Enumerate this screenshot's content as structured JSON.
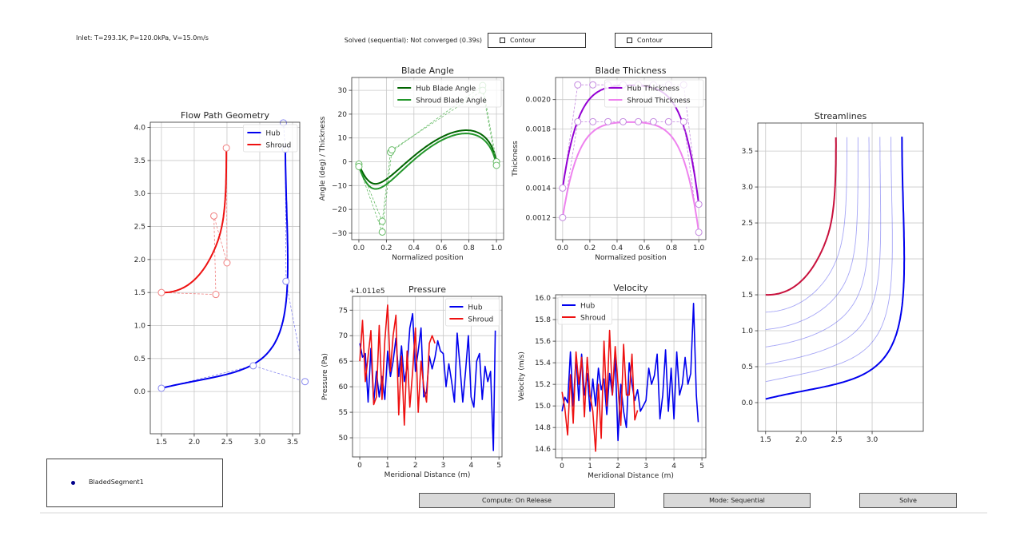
{
  "header": {
    "inlet_text": "Inlet: T=293.1K, P=120.0kPa, V=15.0m/s",
    "status_text": "Solved (sequential): Not converged (0.39s)",
    "contour_toggle_1": "Contour",
    "contour_toggle_2": "Contour"
  },
  "segments": {
    "items": [
      {
        "label": "BladedSegment1",
        "color": "#00008b"
      }
    ]
  },
  "controls": {
    "compute_label": "Compute: On Release",
    "mode_label": "Mode: Sequential",
    "solve_label": "Solve"
  },
  "chart_data": [
    {
      "id": "flow-path",
      "type": "line",
      "title": "Flow Path Geometry",
      "xlabel": "",
      "ylabel": "",
      "xlim": [
        1.33,
        3.61
      ],
      "ylim": [
        -0.64,
        4.08
      ],
      "grid": true,
      "legend": "upper-right",
      "xticks": [
        "1.5",
        "2.0",
        "2.5",
        "3.0",
        "3.5"
      ],
      "yticks": [
        "0.0",
        "0.5",
        "1.0",
        "1.5",
        "2.0",
        "2.5",
        "3.0",
        "3.5",
        "4.0"
      ],
      "series": [
        {
          "name": "Hub",
          "color": "#0000ee",
          "marker_color": "#8888f0",
          "kind": "bezier",
          "show_control": true,
          "control_points": [
            [
              1.5,
              0.05
            ],
            [
              2.9,
              0.39
            ],
            [
              3.69,
              0.15
            ],
            [
              3.4,
              1.67
            ],
            [
              3.39,
              3.67
            ],
            [
              3.36,
              4.07
            ]
          ]
        },
        {
          "name": "Shroud",
          "color": "#ee1111",
          "marker_color": "#f08080",
          "kind": "bezier",
          "show_control": true,
          "control_points": [
            [
              1.5,
              1.5
            ],
            [
              2.33,
              1.47
            ],
            [
              2.3,
              2.66
            ],
            [
              2.5,
              1.95
            ],
            [
              2.49,
              3.69
            ]
          ]
        }
      ]
    },
    {
      "id": "blade-angle",
      "type": "line",
      "title": "Blade Angle",
      "xlabel": "Normalized position",
      "ylabel": "Angle (deg) / Thickness",
      "xlim": [
        -0.052,
        1.052
      ],
      "ylim": [
        -32.7,
        35.4
      ],
      "grid": true,
      "legend": "upper-right",
      "xticks": [
        "0.0",
        "0.2",
        "0.4",
        "0.6",
        "0.8",
        "1.0"
      ],
      "yticks": [
        "−30",
        "−20",
        "−10",
        "0",
        "10",
        "20",
        "30"
      ],
      "series": [
        {
          "name": "Hub Blade Angle",
          "color": "#006400",
          "marker_color": "#66bb66",
          "kind": "bezier",
          "show_control": true,
          "control_points": [
            [
              0,
              -1
            ],
            [
              0.17,
              -25
            ],
            [
              0.23,
              4
            ],
            [
              0.9,
              32
            ],
            [
              1.0,
              0
            ]
          ]
        },
        {
          "name": "Shroud Blade Angle",
          "color": "#22962a",
          "marker_color": "#66bb66",
          "kind": "bezier",
          "show_control": true,
          "control_points": [
            [
              0,
              -2
            ],
            [
              0.17,
              -29.5
            ],
            [
              0.24,
              5
            ],
            [
              0.9,
              30
            ],
            [
              1.0,
              -1.5
            ]
          ]
        }
      ]
    },
    {
      "id": "blade-thickness",
      "type": "line",
      "title": "Blade Thickness",
      "xlabel": "Normalized position",
      "ylabel": "Thickness",
      "xlim": [
        -0.052,
        1.052
      ],
      "ylim": [
        0.00105,
        0.00215
      ],
      "grid": true,
      "legend": "upper-right",
      "xticks": [
        "0.0",
        "0.2",
        "0.4",
        "0.6",
        "0.8",
        "1.0"
      ],
      "yticks": [
        "0.0012",
        "0.0014",
        "0.0016",
        "0.0018",
        "0.0020"
      ],
      "series": [
        {
          "name": "Hub Thickness",
          "color": "#9400d3",
          "marker_color": "#c48ae0",
          "kind": "bezier",
          "show_control": true,
          "control_points": [
            [
              0,
              0.0014
            ],
            [
              0.111,
              0.0021
            ],
            [
              0.222,
              0.0021
            ],
            [
              0.333,
              0.0021
            ],
            [
              0.444,
              0.0021
            ],
            [
              0.556,
              0.0021
            ],
            [
              0.667,
              0.0021
            ],
            [
              0.778,
              0.0021
            ],
            [
              0.889,
              0.0021
            ],
            [
              1.0,
              0.00129
            ]
          ]
        },
        {
          "name": "Shroud Thickness",
          "color": "#ee82ee",
          "marker_color": "#c48ae0",
          "kind": "bezier",
          "show_control": true,
          "control_points": [
            [
              0,
              0.0012
            ],
            [
              0.111,
              0.00185
            ],
            [
              0.222,
              0.00185
            ],
            [
              0.333,
              0.00185
            ],
            [
              0.444,
              0.00185
            ],
            [
              0.556,
              0.00185
            ],
            [
              0.667,
              0.00185
            ],
            [
              0.778,
              0.00185
            ],
            [
              0.889,
              0.00185
            ],
            [
              1.0,
              0.0011
            ]
          ]
        }
      ]
    },
    {
      "id": "pressure",
      "type": "line",
      "title": "Pressure",
      "xlabel": "Meridional Distance (m)",
      "ylabel": "Pressure (Pa)",
      "offset_text": "+1.011e5",
      "xlim": [
        -0.26,
        5.11
      ],
      "ylim": [
        46.25,
        77.7
      ],
      "grid": true,
      "legend": "upper-right",
      "xticks": [
        "0",
        "1",
        "2",
        "3",
        "4",
        "5"
      ],
      "yticks": [
        "50",
        "55",
        "60",
        "65",
        "70",
        "75"
      ],
      "series": [
        {
          "name": "Hub",
          "color": "#0000ee",
          "kind": "line",
          "x": [
            0,
            0.1,
            0.2,
            0.3,
            0.4,
            0.5,
            0.6,
            0.7,
            0.8,
            0.9,
            1.0,
            1.1,
            1.2,
            1.3,
            1.4,
            1.5,
            1.6,
            1.7,
            1.8,
            1.9,
            2.0,
            2.1,
            2.2,
            2.3,
            2.4,
            2.5,
            2.6,
            2.7,
            2.8,
            2.9,
            3.0,
            3.1,
            3.2,
            3.3,
            3.4,
            3.5,
            3.6,
            3.7,
            3.8,
            3.9,
            4.0,
            4.1,
            4.2,
            4.3,
            4.4,
            4.5,
            4.6,
            4.7,
            4.8,
            4.87
          ],
          "y": [
            68.5,
            65.8,
            66.5,
            57,
            67.5,
            56.8,
            63,
            58,
            62,
            57.5,
            67,
            62,
            65,
            69.5,
            62,
            68,
            61,
            64,
            71.5,
            74.3,
            63,
            67,
            71.5,
            58,
            59,
            66,
            63.5,
            65.7,
            69,
            67,
            66.5,
            60,
            64.5,
            61,
            57,
            70.5,
            64,
            57,
            63,
            70,
            58,
            56,
            65,
            66.5,
            57.5,
            64,
            61,
            63,
            47.5,
            71
          ]
        },
        {
          "name": "Shroud",
          "color": "#ee1111",
          "kind": "line",
          "x": [
            0,
            0.1,
            0.2,
            0.3,
            0.4,
            0.5,
            0.6,
            0.7,
            0.8,
            0.9,
            1.0,
            1.1,
            1.2,
            1.3,
            1.4,
            1.5,
            1.6,
            1.7,
            1.8,
            1.9,
            2.0,
            2.1,
            2.2,
            2.3,
            2.4,
            2.5,
            2.6,
            2.7
          ],
          "y": [
            65,
            73,
            61,
            66,
            71,
            56.5,
            58,
            72,
            57.5,
            69,
            76,
            63,
            70,
            74,
            54.5,
            66,
            52.5,
            67,
            56,
            63,
            71.5,
            55,
            65,
            60,
            57,
            68.5,
            70,
            68.5
          ]
        }
      ]
    },
    {
      "id": "velocity",
      "type": "line",
      "title": "Velocity",
      "xlabel": "Meridional Distance (m)",
      "ylabel": "Velocity (m/s)",
      "xlim": [
        -0.23,
        5.14
      ],
      "ylim": [
        14.52,
        16.03
      ],
      "grid": true,
      "legend": "upper-left",
      "xticks": [
        "0",
        "1",
        "2",
        "3",
        "4",
        "5"
      ],
      "yticks": [
        "14.6",
        "14.8",
        "15.0",
        "15.2",
        "15.4",
        "15.6",
        "15.8",
        "16.0"
      ],
      "series": [
        {
          "name": "Hub",
          "color": "#0000ee",
          "kind": "line",
          "x": [
            0,
            0.1,
            0.2,
            0.3,
            0.4,
            0.5,
            0.6,
            0.7,
            0.8,
            0.9,
            1.0,
            1.1,
            1.2,
            1.3,
            1.4,
            1.5,
            1.6,
            1.7,
            1.8,
            1.9,
            2.0,
            2.1,
            2.2,
            2.3,
            2.4,
            2.5,
            2.6,
            2.7,
            2.8,
            2.9,
            3.0,
            3.1,
            3.2,
            3.3,
            3.4,
            3.5,
            3.6,
            3.7,
            3.8,
            3.9,
            4.0,
            4.1,
            4.2,
            4.3,
            4.4,
            4.5,
            4.6,
            4.7,
            4.8,
            4.87
          ],
          "y": [
            14.95,
            15.08,
            15.03,
            15.5,
            15.0,
            15.45,
            15.05,
            15.48,
            15.1,
            15.3,
            14.95,
            15.25,
            15.0,
            15.35,
            15.15,
            15.25,
            14.92,
            15.3,
            15.1,
            15.45,
            14.68,
            15.2,
            14.95,
            14.8,
            15.4,
            15.2,
            15.05,
            15.15,
            14.95,
            15.0,
            15.05,
            15.35,
            15.2,
            15.28,
            15.48,
            14.88,
            15.1,
            15.52,
            14.95,
            15.35,
            14.88,
            15.5,
            15.1,
            15.2,
            15.45,
            15.2,
            15.3,
            15.95,
            15.1,
            14.85
          ]
        },
        {
          "name": "Shroud",
          "color": "#ee1111",
          "kind": "line",
          "x": [
            0,
            0.1,
            0.2,
            0.3,
            0.4,
            0.5,
            0.6,
            0.7,
            0.8,
            0.9,
            1.0,
            1.1,
            1.2,
            1.3,
            1.4,
            1.5,
            1.6,
            1.7,
            1.8,
            1.9,
            2.0,
            2.1,
            2.2,
            2.3,
            2.4,
            2.5,
            2.6,
            2.7
          ],
          "y": [
            15.13,
            14.98,
            14.73,
            15.29,
            14.84,
            15.5,
            15.2,
            15.45,
            14.9,
            15.45,
            15.1,
            14.95,
            14.58,
            15.2,
            14.7,
            15.6,
            15.0,
            15.7,
            15.1,
            15.55,
            15.2,
            14.82,
            15.57,
            15.1,
            15.1,
            15.48,
            14.87,
            14.96
          ]
        }
      ]
    },
    {
      "id": "streamlines",
      "type": "line",
      "title": "Streamlines",
      "xlabel": "",
      "ylabel": "",
      "xlim": [
        1.39,
        3.72
      ],
      "ylim": [
        -0.4,
        3.89
      ],
      "grid": true,
      "legend": "none",
      "xticks": [
        "1.5",
        "2.0",
        "2.5",
        "3.0"
      ],
      "yticks": [
        "0.0",
        "0.5",
        "1.0",
        "1.5",
        "2.0",
        "2.5",
        "3.0",
        "3.5"
      ],
      "interior_streamlines": 5,
      "interior_color": "#6a6af0",
      "series": [
        {
          "name": "",
          "color": "#0000ee",
          "kind": "bezier",
          "show_control": false,
          "control_points": [
            [
              1.5,
              0.05
            ],
            [
              2.9,
              0.39
            ],
            [
              3.72,
              0.15
            ],
            [
              3.42,
              1.67
            ],
            [
              3.42,
              3.7
            ]
          ]
        },
        {
          "name": "",
          "color": "#c8103c",
          "kind": "bezier",
          "show_control": false,
          "control_points": [
            [
              1.5,
              1.5
            ],
            [
              2.33,
              1.47
            ],
            [
              2.3,
              2.66
            ],
            [
              2.5,
              1.95
            ],
            [
              2.49,
              3.69
            ]
          ]
        }
      ]
    }
  ]
}
